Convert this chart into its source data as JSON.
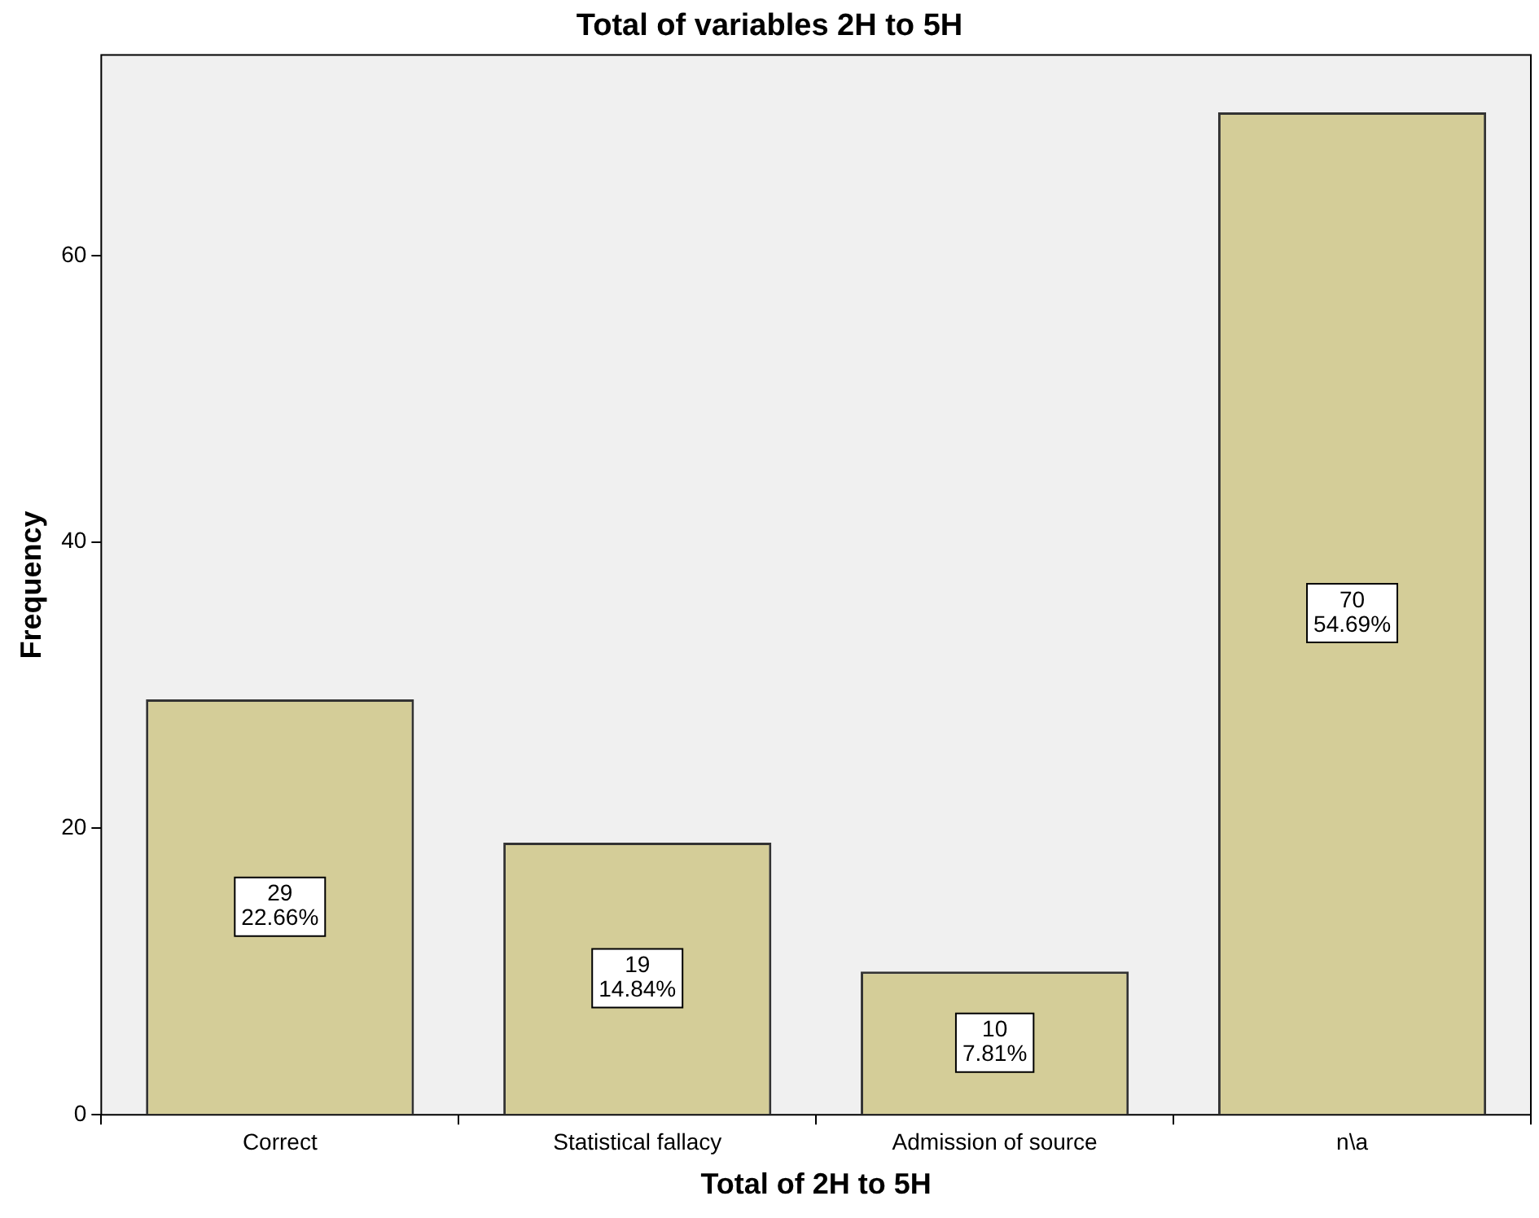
{
  "chart_data": {
    "type": "bar",
    "title": "Total of variables 2H to 5H",
    "xlabel": "Total of 2H to 5H",
    "ylabel": "Frequency",
    "categories": [
      "Correct",
      "Statistical fallacy",
      "Admission of source",
      "n\\a"
    ],
    "values": [
      29,
      19,
      10,
      70
    ],
    "value_labels": [
      "29\n22.66%",
      "19\n14.84%",
      "10\n7.81%",
      "70\n54.69%"
    ],
    "color": "#d4cd98",
    "ylim": [
      0,
      74
    ],
    "yticks": [
      0,
      20,
      40,
      60
    ],
    "grid": false,
    "legend": false
  }
}
